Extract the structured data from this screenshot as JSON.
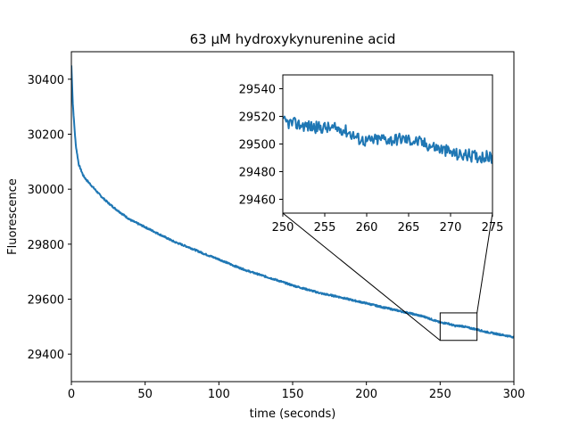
{
  "chart_data": {
    "type": "line",
    "title": "63 μM hydroxykynurenine acid",
    "xlabel": "time (seconds)",
    "ylabel": "Fluorescence",
    "xlim": [
      0,
      300
    ],
    "ylim": [
      29300,
      30500
    ],
    "xticks": [
      0,
      50,
      100,
      150,
      200,
      250,
      300
    ],
    "yticks": [
      29400,
      29600,
      29800,
      30000,
      30200,
      30400
    ],
    "grid": false,
    "series_color": "#1f77b4",
    "series": [
      {
        "x": [
          0,
          1,
          2,
          3,
          5,
          8,
          10,
          15,
          20,
          25,
          30,
          40,
          50,
          60,
          70,
          80,
          90,
          100,
          110,
          120,
          130,
          140,
          150,
          160,
          170,
          180,
          190,
          200,
          210,
          220,
          230,
          240,
          250,
          255,
          260,
          265,
          270,
          275,
          280,
          290,
          300
        ],
        "y": [
          30450,
          30310,
          30230,
          30160,
          30090,
          30050,
          30035,
          30005,
          29975,
          29950,
          29928,
          29888,
          29862,
          29835,
          29808,
          29788,
          29765,
          29745,
          29722,
          29702,
          29685,
          29668,
          29650,
          29635,
          29620,
          29610,
          29597,
          29585,
          29572,
          29560,
          29548,
          29535,
          29515,
          29512,
          29503,
          29502,
          29495,
          29490,
          29482,
          29472,
          29462
        ]
      }
    ],
    "inset": {
      "type": "line",
      "xlim": [
        250,
        275
      ],
      "ylim": [
        29450,
        29550
      ],
      "xticks": [
        250,
        255,
        260,
        265,
        270,
        275
      ],
      "yticks": [
        29460,
        29480,
        29500,
        29520,
        29540
      ],
      "zoom_box": {
        "x": [
          250,
          275
        ],
        "y": [
          29450,
          29550
        ]
      },
      "x": [
        250,
        251,
        252,
        253,
        254,
        255,
        256,
        257,
        258,
        259,
        260,
        261,
        262,
        263,
        264,
        265,
        266,
        267,
        268,
        269,
        270,
        271,
        272,
        273,
        274,
        275
      ],
      "y": [
        29516,
        29515,
        29514,
        29513,
        29512,
        29512,
        29511,
        29511,
        29508,
        29504,
        29502,
        29503,
        29504,
        29503,
        29504,
        29503,
        29502,
        29500,
        29498,
        29496,
        29494,
        29492,
        29492,
        29491,
        29491,
        29490
      ]
    }
  }
}
